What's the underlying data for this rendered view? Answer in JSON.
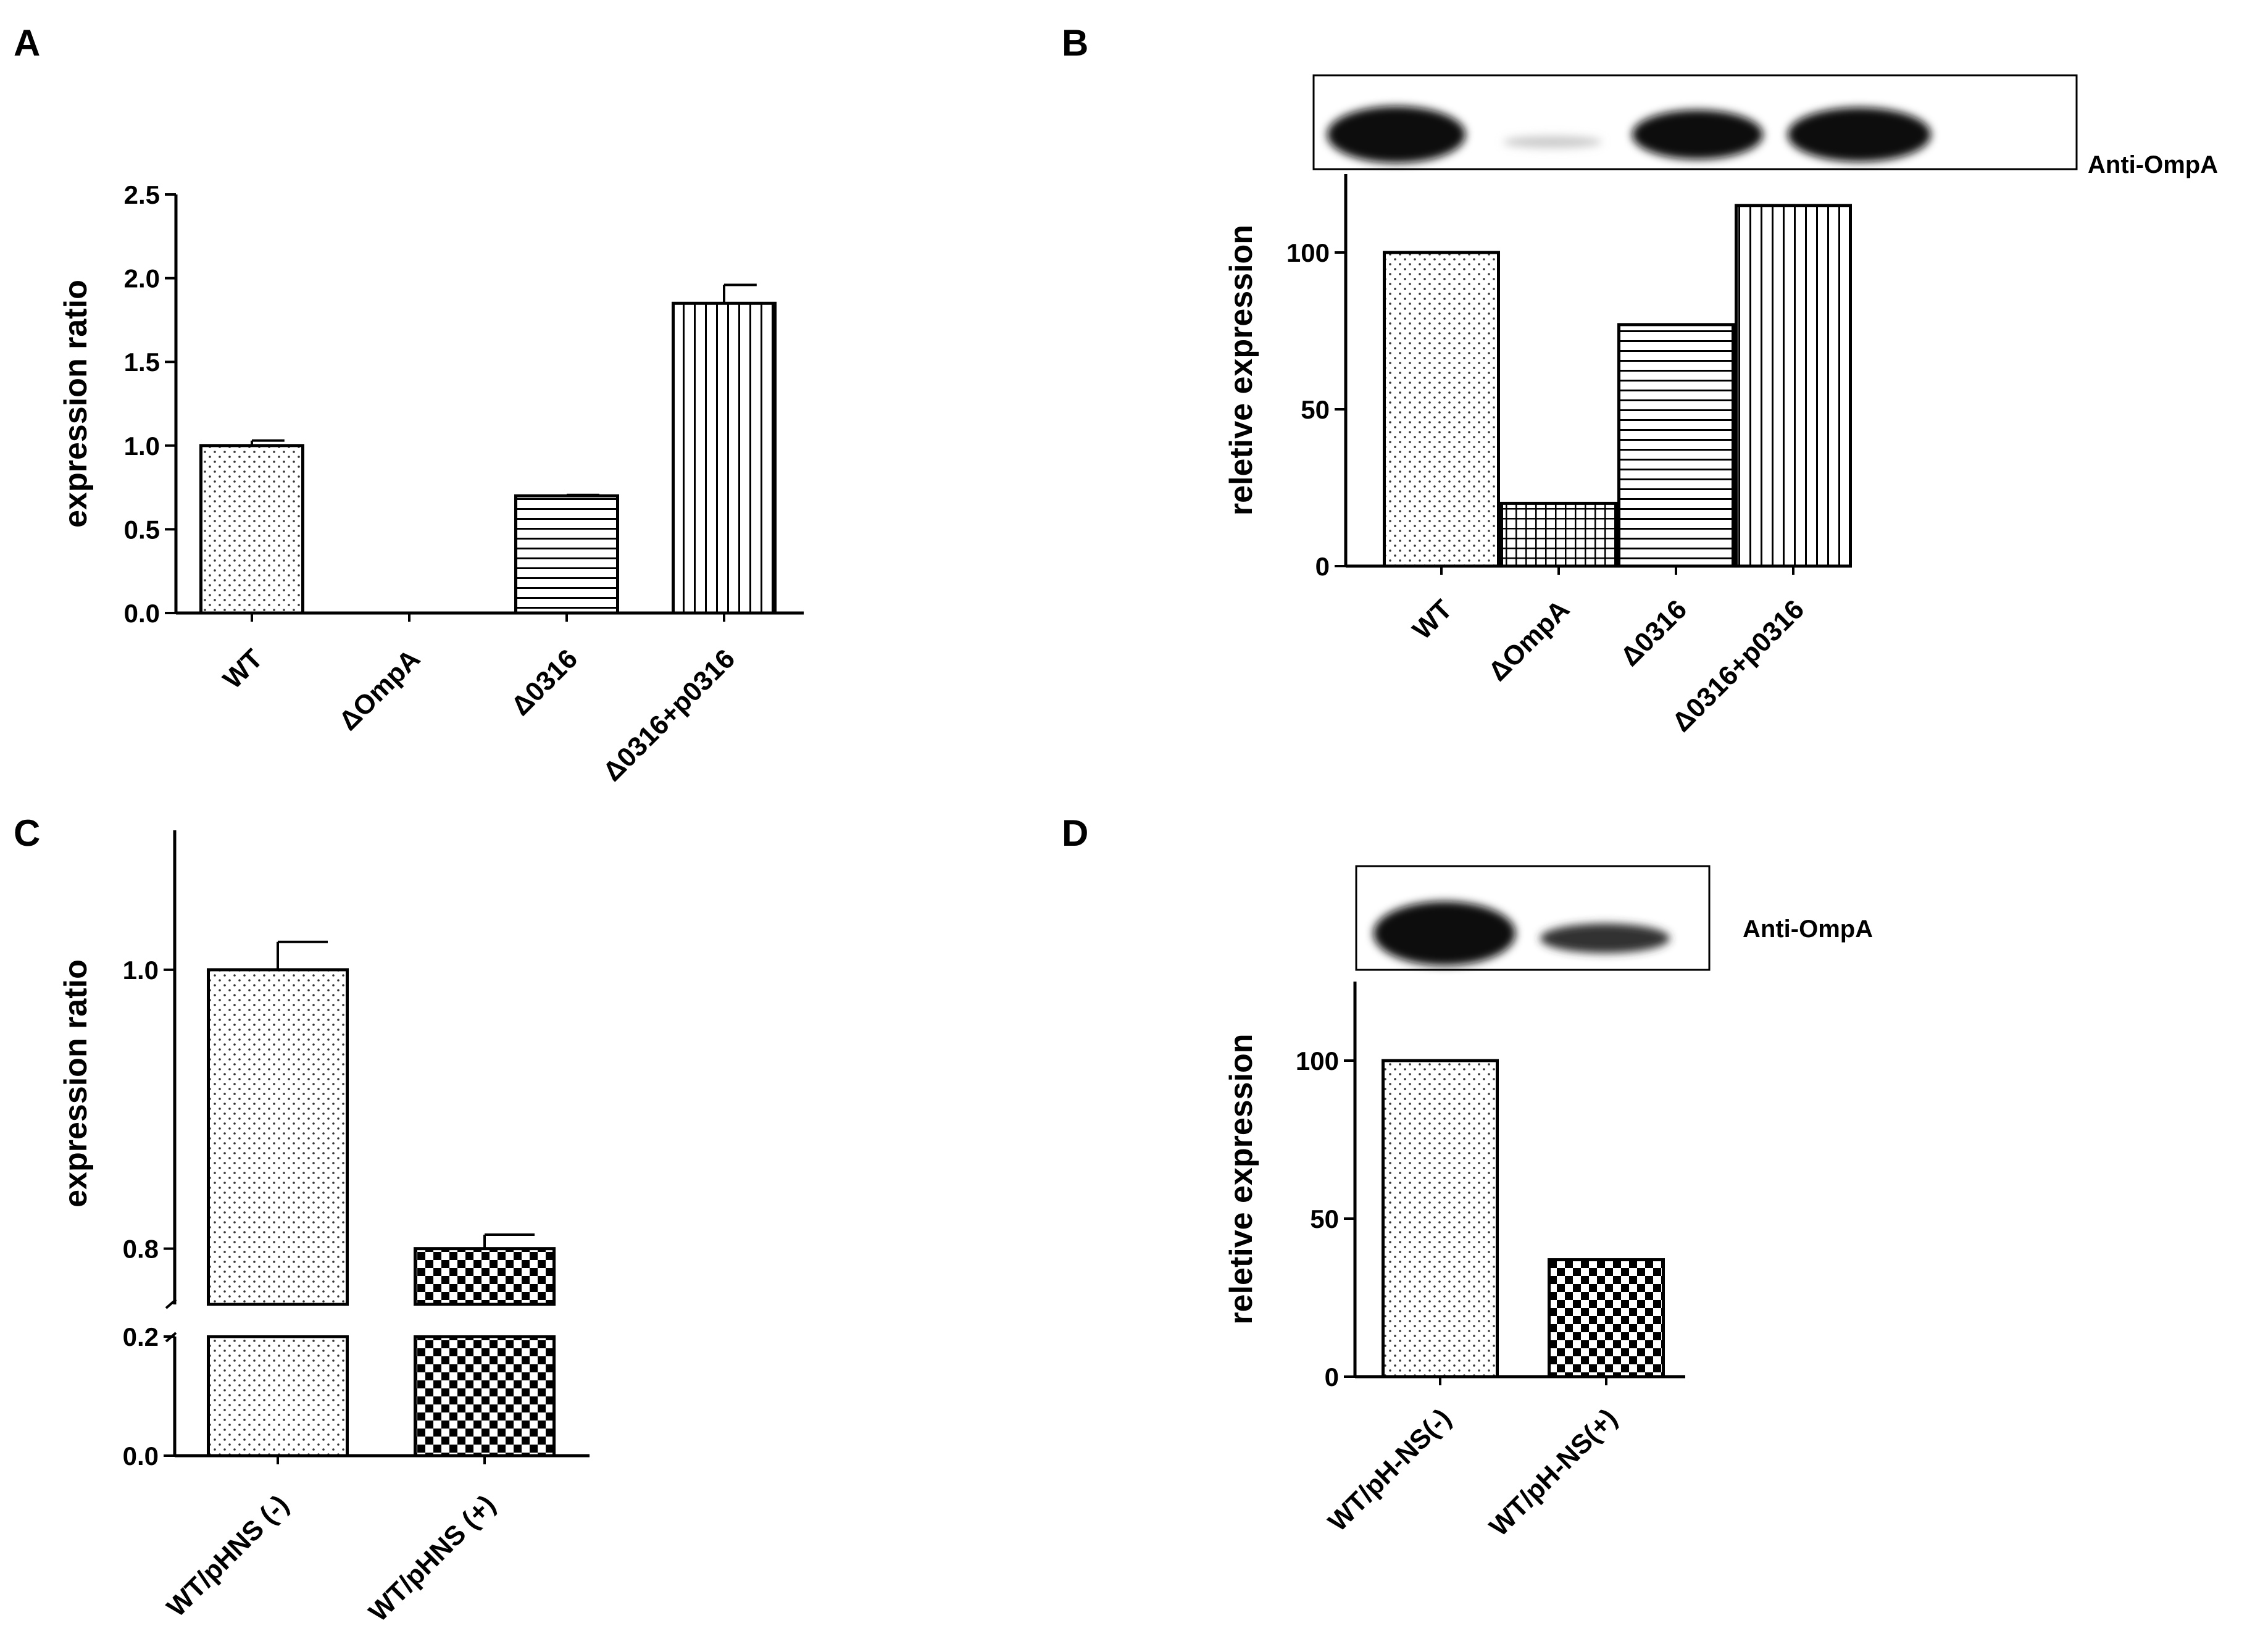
{
  "panels": [
    {
      "label": "A"
    },
    {
      "label": "B"
    },
    {
      "label": "C"
    },
    {
      "label": "D"
    }
  ],
  "blots": [
    {
      "label": "Anti-OmpA"
    },
    {
      "label": "Anti-OmpA"
    }
  ],
  "chart_data": [
    {
      "type": "bar",
      "panel": "A",
      "ylabel": "expression ratio",
      "categories": [
        "WT",
        "ΔOmpA",
        "Δ0316",
        "Δ0316+p0316"
      ],
      "values": [
        1.0,
        0.0,
        0.7,
        1.85
      ],
      "errors": [
        0.03,
        0.0,
        0.005,
        0.11
      ],
      "patterns": [
        "dots",
        "none",
        "hlines",
        "vlines"
      ],
      "ylim": [
        0,
        2.5
      ],
      "yticks": [
        "0.0",
        "0.5",
        "1.0",
        "1.5",
        "2.0",
        "2.5"
      ]
    },
    {
      "type": "bar",
      "panel": "B",
      "ylabel": "reletive expression",
      "categories": [
        "WT",
        "ΔOmpA",
        "Δ0316",
        "Δ0316+p0316"
      ],
      "values": [
        100,
        20,
        77,
        115
      ],
      "patterns": [
        "dots",
        "grid",
        "hlines",
        "vlines"
      ],
      "ylim": [
        0,
        125
      ],
      "yticks": [
        "0",
        "50",
        "100"
      ]
    },
    {
      "type": "bar",
      "panel": "C",
      "ylabel": "expression ratio",
      "categories": [
        "WT/pHNS (-)",
        "WT/pHNS (+)"
      ],
      "values": [
        1.0,
        0.8
      ],
      "errors": [
        0.02,
        0.01
      ],
      "patterns": [
        "dots",
        "checker"
      ],
      "axis_break": [
        0.2,
        0.78
      ],
      "ylim": [
        0,
        1.1
      ],
      "yticks": [
        "0.0",
        "0.2",
        "0.8",
        "1.0"
      ]
    },
    {
      "type": "bar",
      "panel": "D",
      "ylabel": "reletive expression",
      "categories": [
        "WT/pH-NS(-)",
        "WT/pH-NS(+)"
      ],
      "values": [
        100,
        37
      ],
      "patterns": [
        "dots",
        "checker"
      ],
      "ylim": [
        0,
        125
      ],
      "yticks": [
        "0",
        "50",
        "100"
      ]
    }
  ]
}
